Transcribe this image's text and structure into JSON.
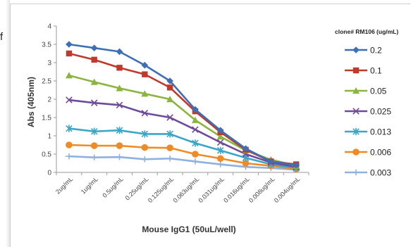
{
  "page": {
    "edge_letter": "f"
  },
  "chart_data": {
    "type": "line",
    "title": "",
    "xlabel": "Mouse IgG1 (50uL/well)",
    "ylabel": "Abs (405nm)",
    "ylim": [
      0,
      4
    ],
    "yticks": [
      "0",
      "0.5",
      "1",
      "1.5",
      "2",
      "2.5",
      "3",
      "3.5",
      "4"
    ],
    "grid": false,
    "legend_position": "right",
    "legend_title": "clone# RM106 (ug/mL)",
    "categories": [
      "2ug/mL",
      "1ug/mL",
      "0.5ug/mL",
      "0.25ug/mL",
      "0.125ug/mL",
      "0.063ug/mL",
      "0.031ug/mL",
      "0.016ug/mL",
      "0.008ug/mL",
      "0.004ug/mL"
    ],
    "series": [
      {
        "name": "0.2",
        "color": "#3e6fb5",
        "marker": "diamond",
        "values": [
          3.5,
          3.4,
          3.3,
          2.93,
          2.5,
          1.72,
          1.15,
          0.65,
          0.3,
          0.2
        ]
      },
      {
        "name": "0.1",
        "color": "#c0392b",
        "marker": "square",
        "values": [
          3.25,
          3.08,
          2.86,
          2.68,
          2.32,
          1.67,
          1.1,
          0.62,
          0.3,
          0.22
        ]
      },
      {
        "name": "0.05",
        "color": "#8cb440",
        "marker": "triangle",
        "values": [
          2.65,
          2.47,
          2.3,
          2.15,
          2.0,
          1.43,
          0.98,
          0.6,
          0.35,
          0.18
        ]
      },
      {
        "name": "0.025",
        "color": "#6f4a9a",
        "marker": "x",
        "values": [
          1.98,
          1.9,
          1.84,
          1.62,
          1.5,
          1.17,
          0.82,
          0.5,
          0.27,
          0.15
        ]
      },
      {
        "name": "0.013",
        "color": "#3aa6c8",
        "marker": "star",
        "values": [
          1.2,
          1.12,
          1.15,
          1.05,
          1.05,
          0.8,
          0.6,
          0.4,
          0.22,
          0.12
        ]
      },
      {
        "name": "0.006",
        "color": "#f08a24",
        "marker": "circle",
        "values": [
          0.75,
          0.73,
          0.73,
          0.68,
          0.67,
          0.5,
          0.38,
          0.25,
          0.18,
          0.09
        ]
      },
      {
        "name": "0.003",
        "color": "#8fb1df",
        "marker": "plus",
        "values": [
          0.44,
          0.41,
          0.42,
          0.36,
          0.38,
          0.3,
          0.22,
          0.15,
          0.12,
          0.07
        ]
      }
    ]
  }
}
